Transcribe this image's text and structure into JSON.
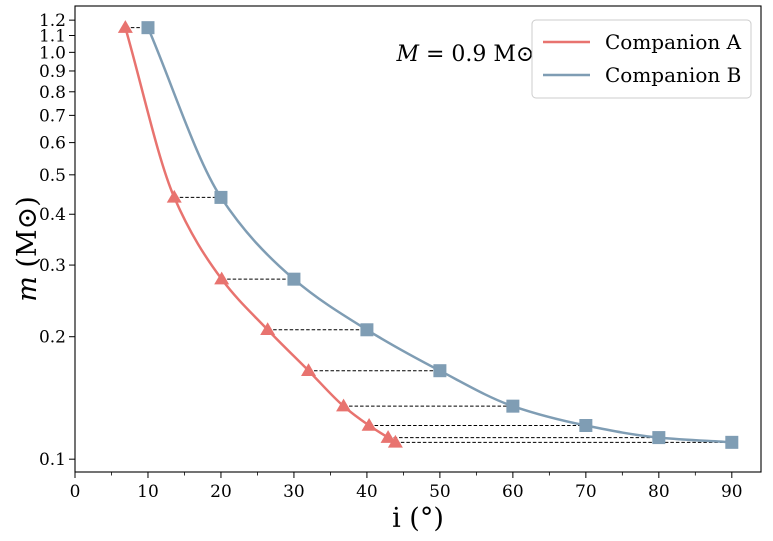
{
  "chart_data": {
    "type": "line",
    "xlabel": "i (°)",
    "ylabel": "m (M⊙)",
    "annotation": "M = 0.9 M⊙",
    "annotation_parts": {
      "var": "M",
      "rest": " = 0.9 M⊙"
    },
    "ylabel_parts": {
      "var": "m",
      "rest": " (M⊙)"
    },
    "xlim": [
      0,
      94
    ],
    "ylim": [
      0.093,
      1.3
    ],
    "y_scale": "log",
    "x_ticks": [
      0,
      10,
      20,
      30,
      40,
      50,
      60,
      70,
      80,
      90
    ],
    "y_ticks": [
      0.1,
      0.2,
      0.3,
      0.4,
      0.5,
      0.6,
      0.7,
      0.8,
      0.9,
      1.0,
      1.1,
      1.2
    ],
    "legend_position": "top-right",
    "series": [
      {
        "name": "Companion A",
        "color": "#e8736f",
        "marker": "triangle",
        "x": [
          6.9,
          13.6,
          20.1,
          26.4,
          32.0,
          36.8,
          40.3,
          42.9,
          43.9
        ],
        "y": [
          1.15,
          0.44,
          0.277,
          0.208,
          0.165,
          0.135,
          0.121,
          0.113,
          0.11
        ]
      },
      {
        "name": "Companion B",
        "color": "#7f9db4",
        "marker": "square",
        "x": [
          10,
          20,
          30,
          40,
          50,
          60,
          70,
          80,
          90
        ],
        "y": [
          1.15,
          0.44,
          0.277,
          0.208,
          0.165,
          0.135,
          0.121,
          0.113,
          0.11
        ]
      }
    ]
  }
}
